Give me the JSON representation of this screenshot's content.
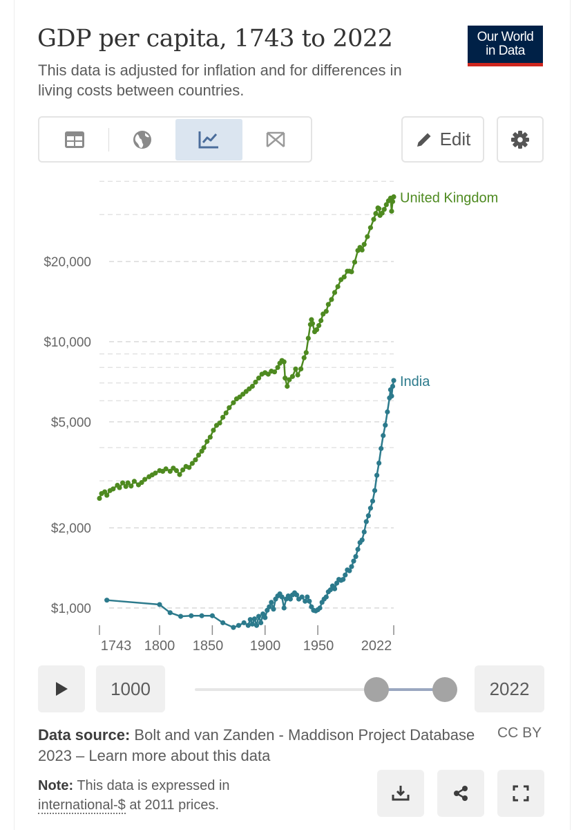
{
  "header": {
    "title": "GDP per capita, 1743 to 2022",
    "subtitle": "This data is adjusted for inflation and for differences in living costs between countries.",
    "logo_line1": "Our World",
    "logo_line2": "in Data"
  },
  "toolbar": {
    "tabs": [
      "table",
      "map",
      "chart",
      "marimekko"
    ],
    "active_tab": "chart",
    "edit_label": "Edit"
  },
  "chart_data": {
    "type": "line",
    "title": "GDP per capita, 1743 to 2022",
    "y_scale": "log",
    "ylim": [
      850,
      46000
    ],
    "xlim": [
      1743,
      2022
    ],
    "y_ticks": [
      {
        "value": 1000,
        "label": "$1,000"
      },
      {
        "value": 2000,
        "label": "$2,000"
      },
      {
        "value": 5000,
        "label": "$5,000"
      },
      {
        "value": 10000,
        "label": "$10,000"
      },
      {
        "value": 20000,
        "label": "$20,000"
      }
    ],
    "y_minor_gridlines": [
      3000,
      4000,
      6000,
      7000,
      8000,
      9000,
      30000,
      40000
    ],
    "x_ticks": [
      {
        "value": 1743,
        "label": "1743"
      },
      {
        "value": 1800,
        "label": "1800"
      },
      {
        "value": 1850,
        "label": "1850"
      },
      {
        "value": 1900,
        "label": "1900"
      },
      {
        "value": 1950,
        "label": "1950"
      },
      {
        "value": 2022,
        "label": "2022"
      }
    ],
    "grid": "dashed horizontal",
    "legend": "inline labels at line ends",
    "series": [
      {
        "name": "United Kingdom",
        "color": "#4e8a20",
        "points": [
          [
            1743,
            2580
          ],
          [
            1745,
            2690
          ],
          [
            1748,
            2730
          ],
          [
            1750,
            2650
          ],
          [
            1753,
            2760
          ],
          [
            1756,
            2800
          ],
          [
            1760,
            2890
          ],
          [
            1762,
            2830
          ],
          [
            1765,
            2950
          ],
          [
            1768,
            2860
          ],
          [
            1770,
            2950
          ],
          [
            1773,
            2870
          ],
          [
            1776,
            2990
          ],
          [
            1780,
            2900
          ],
          [
            1783,
            2960
          ],
          [
            1786,
            3040
          ],
          [
            1790,
            3110
          ],
          [
            1793,
            3160
          ],
          [
            1796,
            3210
          ],
          [
            1800,
            3280
          ],
          [
            1803,
            3260
          ],
          [
            1806,
            3330
          ],
          [
            1810,
            3260
          ],
          [
            1813,
            3350
          ],
          [
            1816,
            3280
          ],
          [
            1819,
            3170
          ],
          [
            1822,
            3300
          ],
          [
            1825,
            3400
          ],
          [
            1828,
            3370
          ],
          [
            1831,
            3490
          ],
          [
            1834,
            3600
          ],
          [
            1837,
            3750
          ],
          [
            1840,
            3880
          ],
          [
            1842,
            4000
          ],
          [
            1845,
            4220
          ],
          [
            1848,
            4380
          ],
          [
            1851,
            4650
          ],
          [
            1854,
            4850
          ],
          [
            1857,
            4950
          ],
          [
            1860,
            5200
          ],
          [
            1863,
            5400
          ],
          [
            1866,
            5650
          ],
          [
            1870,
            5900
          ],
          [
            1873,
            6100
          ],
          [
            1876,
            6200
          ],
          [
            1879,
            6350
          ],
          [
            1882,
            6500
          ],
          [
            1885,
            6650
          ],
          [
            1888,
            6800
          ],
          [
            1891,
            7050
          ],
          [
            1894,
            7300
          ],
          [
            1897,
            7550
          ],
          [
            1900,
            7650
          ],
          [
            1903,
            7550
          ],
          [
            1906,
            7750
          ],
          [
            1909,
            7700
          ],
          [
            1912,
            8000
          ],
          [
            1914,
            8300
          ],
          [
            1916,
            8500
          ],
          [
            1918,
            8400
          ],
          [
            1919,
            7300
          ],
          [
            1921,
            6800
          ],
          [
            1923,
            7200
          ],
          [
            1926,
            7400
          ],
          [
            1929,
            7900
          ],
          [
            1931,
            7500
          ],
          [
            1934,
            7900
          ],
          [
            1937,
            8700
          ],
          [
            1939,
            9100
          ],
          [
            1941,
            10300
          ],
          [
            1943,
            11600
          ],
          [
            1944,
            12100
          ],
          [
            1945,
            11700
          ],
          [
            1947,
            10900
          ],
          [
            1949,
            11100
          ],
          [
            1951,
            11500
          ],
          [
            1953,
            12000
          ],
          [
            1955,
            12700
          ],
          [
            1958,
            13000
          ],
          [
            1960,
            13800
          ],
          [
            1963,
            14400
          ],
          [
            1966,
            15300
          ],
          [
            1969,
            16100
          ],
          [
            1972,
            17100
          ],
          [
            1975,
            17500
          ],
          [
            1978,
            18400
          ],
          [
            1980,
            18400
          ],
          [
            1982,
            18300
          ],
          [
            1985,
            19900
          ],
          [
            1988,
            22000
          ],
          [
            1990,
            22600
          ],
          [
            1992,
            22100
          ],
          [
            1994,
            23200
          ],
          [
            1997,
            24800
          ],
          [
            2000,
            26800
          ],
          [
            2003,
            28800
          ],
          [
            2005,
            30300
          ],
          [
            2007,
            31800
          ],
          [
            2008,
            31600
          ],
          [
            2009,
            29800
          ],
          [
            2011,
            30400
          ],
          [
            2013,
            31400
          ],
          [
            2015,
            32700
          ],
          [
            2017,
            33800
          ],
          [
            2019,
            34600
          ],
          [
            2020,
            30900
          ],
          [
            2021,
            33600
          ],
          [
            2022,
            35000
          ]
        ]
      },
      {
        "name": "India",
        "color": "#2c7a8c",
        "points": [
          [
            1750,
            1070
          ],
          [
            1800,
            1030
          ],
          [
            1810,
            960
          ],
          [
            1820,
            930
          ],
          [
            1830,
            935
          ],
          [
            1840,
            935
          ],
          [
            1850,
            935
          ],
          [
            1860,
            880
          ],
          [
            1870,
            845
          ],
          [
            1875,
            860
          ],
          [
            1880,
            880
          ],
          [
            1884,
            860
          ],
          [
            1886,
            905
          ],
          [
            1888,
            870
          ],
          [
            1890,
            910
          ],
          [
            1892,
            860
          ],
          [
            1894,
            930
          ],
          [
            1896,
            880
          ],
          [
            1898,
            950
          ],
          [
            1900,
            920
          ],
          [
            1902,
            980
          ],
          [
            1904,
            1010
          ],
          [
            1906,
            1050
          ],
          [
            1908,
            990
          ],
          [
            1910,
            1080
          ],
          [
            1912,
            1110
          ],
          [
            1914,
            1130
          ],
          [
            1916,
            1100
          ],
          [
            1918,
            1000
          ],
          [
            1920,
            1080
          ],
          [
            1922,
            1110
          ],
          [
            1924,
            1080
          ],
          [
            1926,
            1120
          ],
          [
            1928,
            1140
          ],
          [
            1930,
            1120
          ],
          [
            1932,
            1080
          ],
          [
            1935,
            1100
          ],
          [
            1938,
            1060
          ],
          [
            1940,
            1100
          ],
          [
            1942,
            1060
          ],
          [
            1944,
            1010
          ],
          [
            1946,
            980
          ],
          [
            1948,
            975
          ],
          [
            1950,
            985
          ],
          [
            1952,
            1000
          ],
          [
            1954,
            1050
          ],
          [
            1956,
            1080
          ],
          [
            1958,
            1100
          ],
          [
            1960,
            1150
          ],
          [
            1962,
            1170
          ],
          [
            1964,
            1210
          ],
          [
            1966,
            1180
          ],
          [
            1968,
            1240
          ],
          [
            1970,
            1280
          ],
          [
            1972,
            1270
          ],
          [
            1974,
            1280
          ],
          [
            1976,
            1330
          ],
          [
            1978,
            1390
          ],
          [
            1980,
            1380
          ],
          [
            1982,
            1430
          ],
          [
            1984,
            1500
          ],
          [
            1986,
            1560
          ],
          [
            1988,
            1660
          ],
          [
            1990,
            1760
          ],
          [
            1992,
            1800
          ],
          [
            1994,
            1930
          ],
          [
            1996,
            2110
          ],
          [
            1998,
            2220
          ],
          [
            2000,
            2370
          ],
          [
            2002,
            2520
          ],
          [
            2004,
            2760
          ],
          [
            2006,
            3150
          ],
          [
            2008,
            3500
          ],
          [
            2010,
            3970
          ],
          [
            2012,
            4440
          ],
          [
            2014,
            4860
          ],
          [
            2016,
            5450
          ],
          [
            2018,
            6150
          ],
          [
            2019,
            6600
          ],
          [
            2020,
            6250
          ],
          [
            2021,
            6800
          ],
          [
            2022,
            7150
          ]
        ]
      }
    ]
  },
  "timeline": {
    "start_year": "1000",
    "end_year": "2022"
  },
  "footer": {
    "source_label": "Data source:",
    "source_text": "Bolt and van Zanden - Maddison Project Database 2023 – Learn more about this data",
    "license": "CC BY",
    "note_label": "Note:",
    "note_text_1": "This data is expressed in",
    "note_link": "international-$",
    "note_text_2": "at 2011 prices."
  }
}
